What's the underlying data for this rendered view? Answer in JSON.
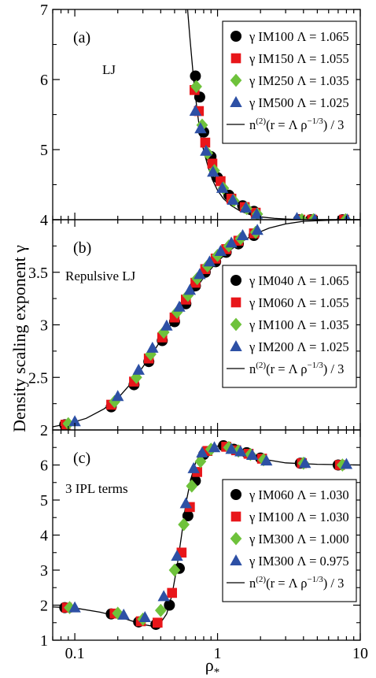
{
  "chart_data": {
    "type": "scatter",
    "ylabel": "Density scaling exponent  γ",
    "xlabel": "ρ",
    "xlabel_sub": "*",
    "xscale": "log",
    "xlim": [
      0.07,
      10
    ],
    "xticks": [
      {
        "value": 0.1,
        "label": "0.1"
      },
      {
        "value": 1,
        "label": "1"
      },
      {
        "value": 10,
        "label": "10"
      }
    ],
    "colors": {
      "black": "#000000",
      "red": "#e8161a",
      "green": "#6ec23b",
      "blue": "#2d50a5"
    },
    "fit_legend": {
      "prefix": "n",
      "sup1": "(2)",
      "mid": "(r = Λ ρ",
      "sup2": "−1/3",
      "suffix": ") / 3"
    },
    "panels": [
      {
        "id": "a",
        "letter": "(a)",
        "note": "LJ",
        "ylim": [
          4,
          7
        ],
        "yticks": [
          {
            "value": 4,
            "label": "4"
          },
          {
            "value": 5,
            "label": "5"
          },
          {
            "value": 6,
            "label": "6"
          },
          {
            "value": 7,
            "label": "7"
          }
        ],
        "legend_position": "top-right",
        "series": [
          {
            "name": "γ IM100 Λ = 1.065",
            "marker": "circle",
            "color": "black",
            "x": [
              0.7,
              0.75,
              0.8,
              0.9,
              1.0,
              1.2,
              1.5,
              1.8,
              3.7,
              4.5,
              7.5
            ],
            "y": [
              6.05,
              5.75,
              5.25,
              4.9,
              4.6,
              4.35,
              4.2,
              4.12,
              4.0,
              4.0,
              4.0
            ]
          },
          {
            "name": "γ IM150 Λ = 1.055",
            "marker": "square",
            "color": "red",
            "x": [
              0.69,
              0.74,
              0.82,
              0.92,
              1.05,
              1.25,
              1.55,
              1.85,
              3.8,
              4.6,
              7.7
            ],
            "y": [
              5.85,
              5.55,
              5.1,
              4.8,
              4.55,
              4.3,
              4.18,
              4.1,
              4.0,
              4.0,
              4.0
            ]
          },
          {
            "name": "γ IM250 Λ = 1.035",
            "marker": "diamond",
            "color": "green",
            "x": [
              0.71,
              0.78,
              0.85,
              0.95,
              1.1,
              1.3,
              1.6,
              1.9,
              3.9,
              4.7,
              7.9
            ],
            "y": [
              5.9,
              5.35,
              4.95,
              4.7,
              4.45,
              4.27,
              4.16,
              4.08,
              4.0,
              4.0,
              4.0
            ]
          },
          {
            "name": "γ IM500 Λ = 1.025",
            "marker": "triangle",
            "color": "blue",
            "x": [
              0.7,
              0.76,
              0.83,
              0.93,
              1.08,
              1.28,
              1.58,
              1.88,
              3.6,
              4.8,
              8.1
            ],
            "y": [
              5.55,
              5.3,
              4.98,
              4.68,
              4.45,
              4.28,
              4.17,
              4.08,
              4.02,
              4.0,
              4.0
            ]
          }
        ],
        "fit_curve": {
          "x": [
            0.6,
            0.64,
            0.68,
            0.72,
            0.76,
            0.8,
            0.86,
            0.92,
            1.0,
            1.1,
            1.25,
            1.45,
            1.7,
            2.0,
            2.5,
            3.0,
            4.0,
            5.5,
            7.0,
            10.0
          ],
          "y": [
            7.3,
            6.6,
            6.0,
            5.55,
            5.2,
            4.98,
            4.75,
            4.57,
            4.42,
            4.3,
            4.2,
            4.12,
            4.07,
            4.04,
            4.02,
            4.01,
            4.0,
            4.0,
            4.0,
            4.0
          ]
        }
      },
      {
        "id": "b",
        "letter": "(b)",
        "note": "Repulsive LJ",
        "ylim": [
          2,
          4
        ],
        "yticks": [
          {
            "value": 2,
            "label": "2"
          },
          {
            "value": 2.5,
            "label": "2.5"
          },
          {
            "value": 3,
            "label": "3"
          },
          {
            "value": 3.5,
            "label": "3.5"
          },
          {
            "value": 4,
            "label": "4"
          }
        ],
        "legend_position": "right",
        "series": [
          {
            "name": "γ IM040 Λ = 1.065",
            "marker": "circle",
            "color": "black",
            "x": [
              0.085,
              0.18,
              0.26,
              0.33,
              0.41,
              0.5,
              0.6,
              0.7,
              0.82,
              0.97,
              1.15,
              1.4,
              1.8
            ],
            "y": [
              2.05,
              2.22,
              2.43,
              2.65,
              2.85,
              3.03,
              3.2,
              3.37,
              3.5,
              3.6,
              3.69,
              3.77,
              3.85
            ]
          },
          {
            "name": "γ IM060 Λ = 1.055",
            "marker": "square",
            "color": "red",
            "x": [
              0.086,
              0.18,
              0.26,
              0.33,
              0.41,
              0.5,
              0.6,
              0.7,
              0.82,
              0.97,
              1.15,
              1.4,
              1.8
            ],
            "y": [
              2.05,
              2.24,
              2.46,
              2.68,
              2.88,
              3.07,
              3.24,
              3.4,
              3.53,
              3.63,
              3.72,
              3.8,
              3.87
            ]
          },
          {
            "name": "γ IM100 Λ = 1.035",
            "marker": "diamond",
            "color": "green",
            "x": [
              0.09,
              0.19,
              0.27,
              0.34,
              0.42,
              0.52,
              0.62,
              0.72,
              0.85,
              1.0,
              1.2,
              1.45,
              1.85
            ],
            "y": [
              2.06,
              2.27,
              2.5,
              2.72,
              2.93,
              3.12,
              3.28,
              3.44,
              3.56,
              3.66,
              3.75,
              3.82,
              3.88
            ]
          },
          {
            "name": "γ IM200 Λ = 1.025",
            "marker": "triangle",
            "color": "blue",
            "x": [
              0.1,
              0.2,
              0.28,
              0.35,
              0.44,
              0.54,
              0.64,
              0.75,
              0.88,
              1.05,
              1.25,
              1.5,
              1.9
            ],
            "y": [
              2.08,
              2.32,
              2.57,
              2.78,
              2.99,
              3.17,
              3.33,
              3.48,
              3.6,
              3.7,
              3.78,
              3.85,
              3.9
            ]
          }
        ],
        "fit_curve": {
          "x": [
            0.07,
            0.09,
            0.12,
            0.16,
            0.2,
            0.25,
            0.3,
            0.37,
            0.45,
            0.55,
            0.67,
            0.8,
            0.95,
            1.15,
            1.4,
            1.8,
            2.3,
            3.0,
            4.0,
            6.0,
            10.0
          ],
          "y": [
            2.03,
            2.06,
            2.11,
            2.2,
            2.3,
            2.45,
            2.6,
            2.78,
            2.96,
            3.13,
            3.3,
            3.45,
            3.57,
            3.68,
            3.77,
            3.86,
            3.92,
            3.96,
            3.985,
            3.995,
            4.0
          ]
        }
      },
      {
        "id": "c",
        "letter": "(c)",
        "note": "3 IPL terms",
        "ylim": [
          1,
          7
        ],
        "yticks": [
          {
            "value": 1,
            "label": "1"
          },
          {
            "value": 2,
            "label": "2"
          },
          {
            "value": 3,
            "label": "3"
          },
          {
            "value": 4,
            "label": "4"
          },
          {
            "value": 5,
            "label": "5"
          },
          {
            "value": 6,
            "label": "6"
          }
        ],
        "legend_position": "bottom-right",
        "series": [
          {
            "name": "γ IM060 Λ = 1.030",
            "marker": "circle",
            "color": "black",
            "x": [
              0.085,
              0.18,
              0.28,
              0.37,
              0.46,
              0.54,
              0.62,
              0.7,
              0.8,
              1.1,
              1.3,
              1.6,
              2.0,
              3.8,
              7.0
            ],
            "y": [
              1.93,
              1.75,
              1.52,
              1.45,
              2.0,
              3.05,
              4.55,
              5.55,
              6.3,
              6.55,
              6.45,
              6.35,
              6.2,
              6.05,
              6.0
            ]
          },
          {
            "name": "γ IM100 Λ = 1.030",
            "marker": "square",
            "color": "red",
            "x": [
              0.088,
              0.19,
              0.29,
              0.38,
              0.48,
              0.56,
              0.64,
              0.72,
              0.85,
              1.15,
              1.35,
              1.65,
              2.05,
              3.9,
              7.2
            ],
            "y": [
              1.93,
              1.76,
              1.54,
              1.5,
              2.35,
              3.5,
              4.8,
              5.8,
              6.4,
              6.52,
              6.42,
              6.32,
              6.18,
              6.05,
              6.0
            ]
          },
          {
            "name": "γ IM300 Λ = 1.000",
            "marker": "diamond",
            "color": "green",
            "x": [
              0.092,
              0.2,
              0.3,
              0.4,
              0.5,
              0.58,
              0.66,
              0.76,
              0.9,
              1.2,
              1.4,
              1.7,
              2.1,
              4.0,
              7.5
            ],
            "y": [
              1.93,
              1.77,
              1.6,
              1.85,
              3.0,
              4.3,
              5.4,
              6.1,
              6.45,
              6.5,
              6.4,
              6.3,
              6.15,
              6.05,
              6.0
            ]
          },
          {
            "name": "γ IM300 Λ = 0.975",
            "marker": "triangle",
            "color": "blue",
            "x": [
              0.1,
              0.22,
              0.31,
              0.42,
              0.52,
              0.6,
              0.68,
              0.78,
              0.95,
              1.25,
              1.45,
              1.75,
              2.2,
              4.1,
              8.0
            ],
            "y": [
              1.93,
              1.72,
              1.65,
              2.25,
              3.4,
              4.9,
              5.9,
              6.35,
              6.5,
              6.45,
              6.38,
              6.28,
              6.12,
              6.05,
              6.02
            ]
          }
        ],
        "fit_curve": {
          "x": [
            0.07,
            0.1,
            0.15,
            0.2,
            0.25,
            0.3,
            0.35,
            0.4,
            0.44,
            0.48,
            0.52,
            0.56,
            0.6,
            0.65,
            0.7,
            0.76,
            0.85,
            0.95,
            1.1,
            1.3,
            1.6,
            2.0,
            3.0,
            5.0,
            10.0
          ],
          "y": [
            1.95,
            1.92,
            1.8,
            1.68,
            1.55,
            1.45,
            1.4,
            1.5,
            1.75,
            2.3,
            3.1,
            4.0,
            4.9,
            5.6,
            6.05,
            6.35,
            6.5,
            6.55,
            6.52,
            6.45,
            6.32,
            6.18,
            6.06,
            6.02,
            6.0
          ]
        }
      }
    ]
  }
}
